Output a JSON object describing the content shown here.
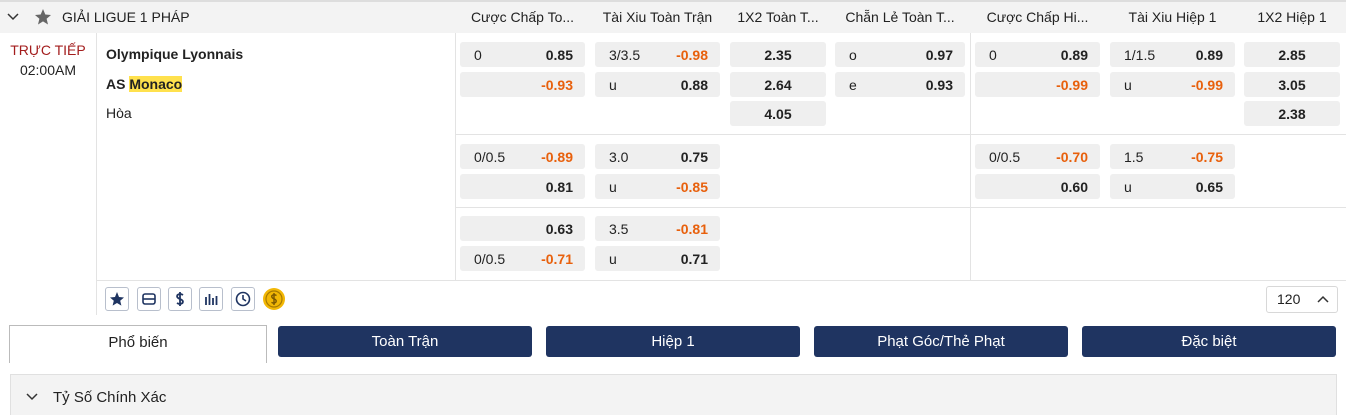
{
  "league": {
    "title": "GIẢI LIGUE 1 PHÁP",
    "columns": [
      "Cược Chấp To...",
      "Tài Xiu Toàn Trận",
      "1X2 Toàn T...",
      "Chẵn Lẻ Toàn T...",
      "Cược Chấp Hi...",
      "Tài Xiu Hiệp 1",
      "1X2 Hiệp 1"
    ]
  },
  "match": {
    "status": "TRỰC TIẾP",
    "time": "02:00AM",
    "home": "Olympique Lyonnais",
    "away_prefix": "AS",
    "away_highlight": "Monaco",
    "draw": "Hòa",
    "more_count": "120"
  },
  "markets": [
    [
      [
        {
          "line": "0",
          "odds": "0.85"
        },
        {
          "odds": "-0.93"
        }
      ],
      [
        {
          "line": "3/3.5",
          "odds": "-0.98"
        },
        {
          "line": "u",
          "odds": "0.88"
        }
      ],
      [
        {
          "odds": "2.35"
        },
        {
          "odds": "2.64"
        },
        {
          "odds": "4.05"
        }
      ],
      [
        {
          "line": "o",
          "odds": "0.97"
        },
        {
          "line": "e",
          "odds": "0.93"
        }
      ],
      [
        {
          "line": "0",
          "odds": "0.89"
        },
        {
          "odds": "-0.99"
        }
      ],
      [
        {
          "line": "1/1.5",
          "odds": "0.89"
        },
        {
          "line": "u",
          "odds": "-0.99"
        }
      ],
      [
        {
          "odds": "2.85"
        },
        {
          "odds": "3.05"
        },
        {
          "odds": "2.38"
        }
      ]
    ],
    [
      [
        {
          "line": "0/0.5",
          "odds": "-0.89"
        },
        {
          "odds": "0.81"
        }
      ],
      [
        {
          "line": "3.0",
          "odds": "0.75"
        },
        {
          "line": "u",
          "odds": "-0.85"
        }
      ],
      null,
      null,
      [
        {
          "line": "0/0.5",
          "odds": "-0.70"
        },
        {
          "odds": "0.60"
        }
      ],
      [
        {
          "line": "1.5",
          "odds": "-0.75"
        },
        {
          "line": "u",
          "odds": "0.65"
        }
      ],
      null
    ],
    [
      [
        {
          "odds": "0.63"
        },
        {
          "line": "0/0.5",
          "odds": "-0.71"
        }
      ],
      [
        {
          "line": "3.5",
          "odds": "-0.81"
        },
        {
          "line": "u",
          "odds": "0.71"
        }
      ],
      null,
      null,
      null,
      null,
      null
    ]
  ],
  "tabs": {
    "active": "Phổ biến",
    "others": [
      "Toàn Trận",
      "Hiệp 1",
      "Phạt Góc/Thẻ Phạt",
      "Đặc biệt"
    ]
  },
  "section": {
    "title": "Tỷ Số Chính Xác"
  }
}
